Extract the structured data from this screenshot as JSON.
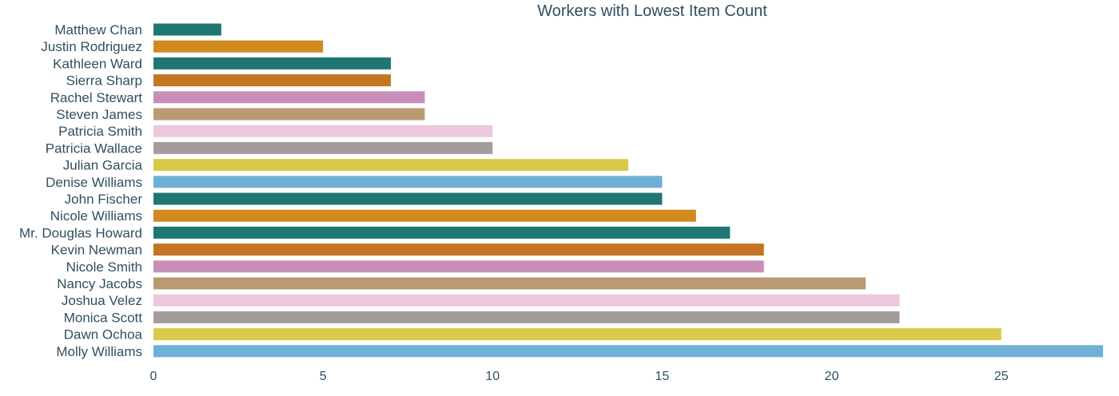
{
  "chart_data": {
    "type": "bar",
    "orientation": "horizontal",
    "title": "Workers with Lowest Item Count",
    "xlabel": "",
    "ylabel": "",
    "xlim": [
      0,
      28
    ],
    "x_ticks": [
      "0",
      "5",
      "10",
      "15",
      "20",
      "25"
    ],
    "x_tick_values": [
      0,
      5,
      10,
      15,
      20,
      25
    ],
    "grid": false,
    "legend": "none",
    "categories": [
      "Matthew Chan",
      "Justin Rodriguez",
      "Kathleen Ward",
      "Sierra Sharp",
      "Rachel Stewart",
      "Steven James",
      "Patricia Smith",
      "Patricia Wallace",
      "Julian Garcia",
      "Denise Williams",
      "John Fischer",
      "Nicole Williams",
      "Mr. Douglas Howard",
      "Kevin Newman",
      "Nicole Smith",
      "Nancy Jacobs",
      "Joshua Velez",
      "Monica Scott",
      "Dawn Ochoa",
      "Molly Williams"
    ],
    "values": [
      2,
      5,
      7,
      7,
      8,
      8,
      10,
      10,
      14,
      15,
      15,
      16,
      17,
      18,
      18,
      21,
      22,
      22,
      25,
      28
    ],
    "colors": [
      "#1f7672",
      "#d08a1f",
      "#1f7672",
      "#c47422",
      "#c78fb8",
      "#b99a74",
      "#ebc8dc",
      "#a39b9c",
      "#d8c94b",
      "#6fb0d6",
      "#1f7672",
      "#d08a1f",
      "#1f7672",
      "#c47422",
      "#c78fb8",
      "#b99a74",
      "#ebc8dc",
      "#a39b9c",
      "#d8c94b",
      "#6fb0d6"
    ]
  }
}
